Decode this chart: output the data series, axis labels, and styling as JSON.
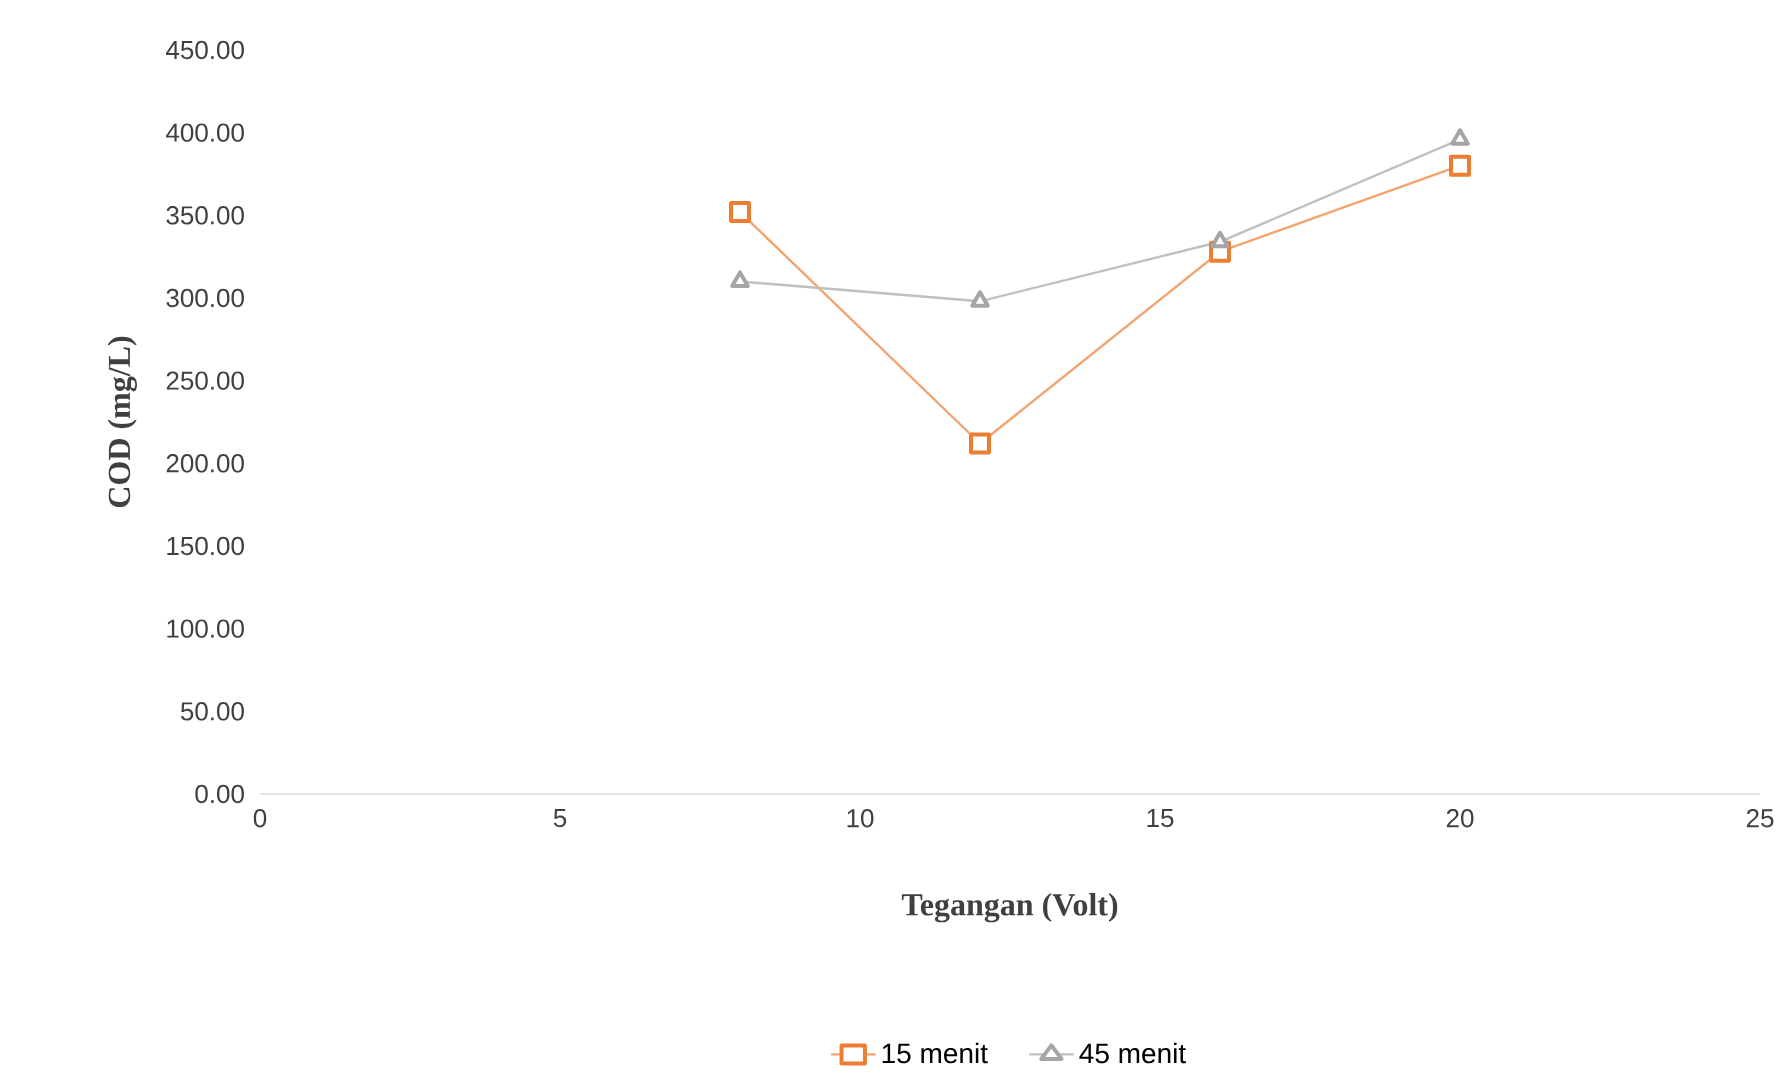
{
  "chart_data": {
    "type": "line",
    "xlabel": "Tegangan (Volt)",
    "ylabel": "COD (mg/L)",
    "xlim": [
      0,
      25
    ],
    "xticks": [
      0,
      5,
      10,
      15,
      20,
      25
    ],
    "ylim": [
      0,
      450
    ],
    "yticks": [
      {
        "value": 0,
        "label": "0.00"
      },
      {
        "value": 50,
        "label": "50.00"
      },
      {
        "value": 100,
        "label": "100.00"
      },
      {
        "value": 150,
        "label": "150.00"
      },
      {
        "value": 200,
        "label": "200.00"
      },
      {
        "value": 250,
        "label": "250.00"
      },
      {
        "value": 300,
        "label": "300.00"
      },
      {
        "value": 350,
        "label": "350.00"
      },
      {
        "value": 400,
        "label": "400.00"
      },
      {
        "value": 450,
        "label": "450.00"
      }
    ],
    "x": [
      8,
      12,
      16,
      20
    ],
    "series": [
      {
        "name": "15 menit",
        "color": "#ed7d31",
        "marker": "square",
        "values": [
          352,
          212,
          328,
          380
        ]
      },
      {
        "name": "45 menit",
        "color": "#a5a5a5",
        "marker": "triangle",
        "values": [
          310,
          298,
          334,
          396
        ]
      }
    ],
    "legend": "bottom",
    "grid": false
  }
}
